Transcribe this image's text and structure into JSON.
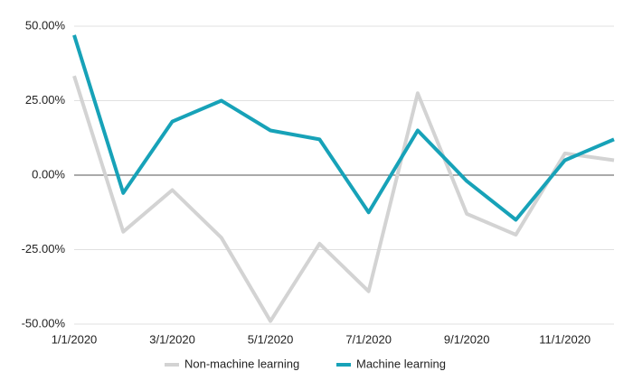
{
  "chart_data": {
    "type": "line",
    "categories": [
      "1/1/2020",
      null,
      "3/1/2020",
      null,
      "5/1/2020",
      null,
      "7/1/2020",
      null,
      "9/1/2020",
      null,
      "11/1/2020",
      null
    ],
    "series": [
      {
        "name": "Non-machine learning",
        "color": "#d3d3d3",
        "values": [
          33.3,
          -19,
          -5,
          -21,
          -49,
          -23,
          -39,
          27.5,
          -13,
          -20,
          7.3,
          5
        ]
      },
      {
        "name": "Machine learning",
        "color": "#17a2b8",
        "values": [
          47,
          -6,
          18,
          25,
          15,
          12,
          -12.5,
          15,
          -2,
          -15,
          5,
          12
        ]
      }
    ],
    "ylim": [
      -50,
      50
    ],
    "yticks": [
      {
        "value": -50,
        "label": "-50.00%"
      },
      {
        "value": -25,
        "label": "-25.00%"
      },
      {
        "value": 0,
        "label": "0.00%"
      },
      {
        "value": 25,
        "label": "25.00%"
      },
      {
        "value": 50,
        "label": "50.00%"
      }
    ],
    "grid": true,
    "legend": "bottom"
  }
}
